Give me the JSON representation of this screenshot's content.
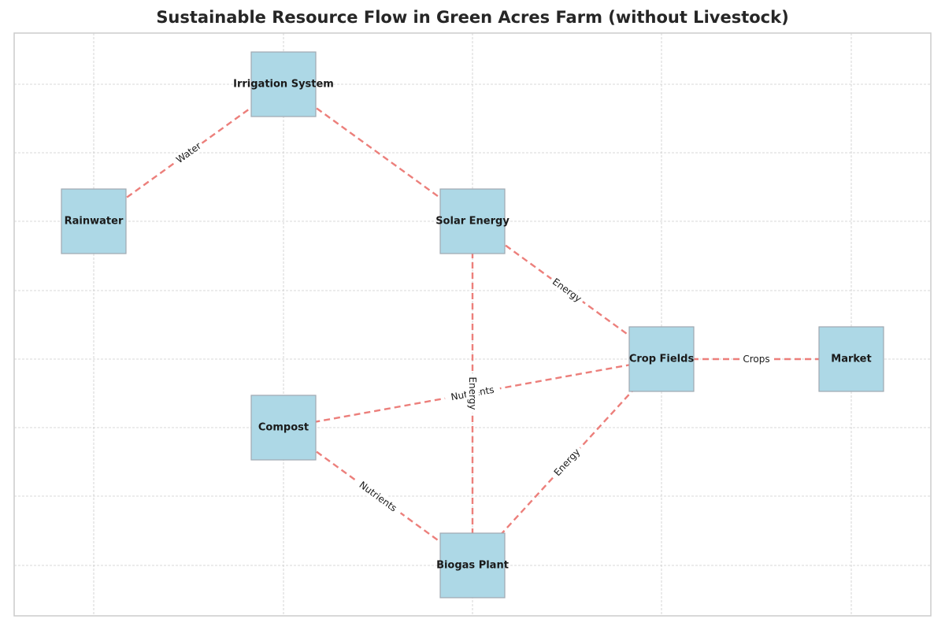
{
  "title": "Sustainable Resource Flow in Green Acres Farm (without Livestock)",
  "colors": {
    "node_fill": "#add8e6",
    "node_border": "#a0a8b0",
    "edge": "#ec7f7b",
    "grid": "#cccccc"
  },
  "nodes": [
    {
      "id": "irrigation",
      "label": "Irrigation System"
    },
    {
      "id": "rainwater",
      "label": "Rainwater"
    },
    {
      "id": "solar",
      "label": "Solar Energy"
    },
    {
      "id": "crop",
      "label": "Crop Fields"
    },
    {
      "id": "market",
      "label": "Market"
    },
    {
      "id": "compost",
      "label": "Compost"
    },
    {
      "id": "biogas",
      "label": "Biogas Plant"
    }
  ],
  "edges": [
    {
      "from": "rainwater",
      "to": "irrigation",
      "label": "Water"
    },
    {
      "from": "irrigation",
      "to": "solar",
      "label": ""
    },
    {
      "from": "solar",
      "to": "crop",
      "label": "Energy"
    },
    {
      "from": "crop",
      "to": "market",
      "label": "Crops"
    },
    {
      "from": "compost",
      "to": "crop",
      "label": "Nutrients"
    },
    {
      "from": "compost",
      "to": "biogas",
      "label": "Nutrients"
    },
    {
      "from": "biogas",
      "to": "crop",
      "label": "Energy"
    },
    {
      "from": "solar",
      "to": "biogas",
      "label": "Energy"
    }
  ]
}
